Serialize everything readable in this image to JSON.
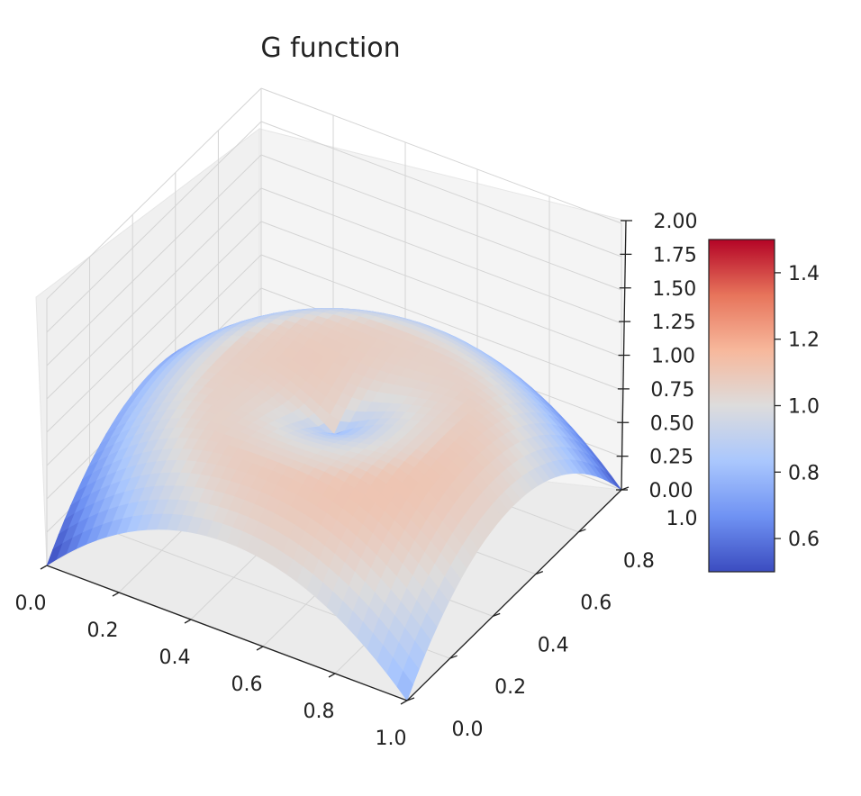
{
  "chart_data": {
    "type": "surface",
    "title": "G function",
    "xlabel": "",
    "ylabel": "",
    "zlabel": "",
    "x_ticks": [
      "0.0",
      "0.2",
      "0.4",
      "0.6",
      "0.8",
      "1.0"
    ],
    "y_ticks": [
      "0.0",
      "0.2",
      "0.4",
      "0.6",
      "0.8",
      "1.0"
    ],
    "z_ticks": [
      "0.00",
      "0.25",
      "0.50",
      "0.75",
      "1.00",
      "1.25",
      "1.50",
      "1.75",
      "2.00"
    ],
    "xlim": [
      0,
      1
    ],
    "ylim": [
      0,
      1
    ],
    "zlim": [
      0,
      2
    ],
    "colormap": "coolwarm",
    "colorbar": {
      "ticks": [
        "0.6",
        "0.8",
        "1.0",
        "1.2",
        "1.4"
      ],
      "range": [
        0.5,
        1.5
      ],
      "colors": [
        "#3b4cc0",
        "#6f92f3",
        "#aac7fd",
        "#dddcdc",
        "#f7b89c",
        "#e7745b",
        "#b40426"
      ]
    },
    "grid": true,
    "surface": {
      "grid_resolution": 36,
      "ring_center": [
        0.5,
        0.5
      ],
      "ring_radius": 0.3,
      "z_at_corners": 0.0,
      "z_ring_peak": 1.0,
      "z_at_center": 0.7
    }
  }
}
